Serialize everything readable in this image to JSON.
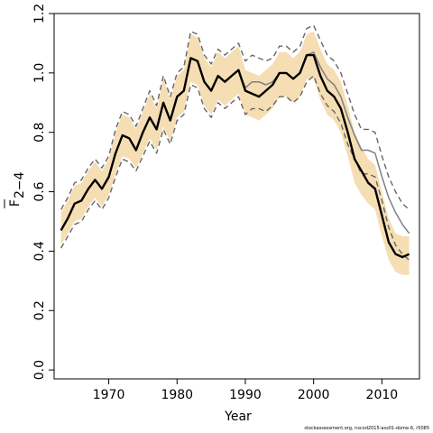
{
  "chart_data": {
    "type": "line",
    "xlabel": "Year",
    "ylabel_main": "F",
    "ylabel_sub": "2−4",
    "xlim": [
      1962,
      2015.5
    ],
    "ylim": [
      -0.03,
      1.2
    ],
    "x_ticks": [
      1970,
      1980,
      1990,
      2000,
      2010
    ],
    "y_ticks": [
      0.0,
      0.2,
      0.4,
      0.6,
      0.8,
      1.0,
      1.2
    ],
    "y_tick_labels": [
      "0.0",
      "0.2",
      "0.4",
      "0.6",
      "0.8",
      "1.0",
      "1.2"
    ],
    "colors": {
      "band": "#f5deb3",
      "main": "#000000",
      "alt": "#808080",
      "dash": "#666666"
    },
    "x": [
      1963,
      1964,
      1965,
      1966,
      1967,
      1968,
      1969,
      1970,
      1971,
      1972,
      1973,
      1974,
      1975,
      1976,
      1977,
      1978,
      1979,
      1980,
      1981,
      1982,
      1983,
      1984,
      1985,
      1986,
      1987,
      1988,
      1989,
      1990,
      1991,
      1992,
      1993,
      1994,
      1995,
      1996,
      1997,
      1998,
      1999,
      2000,
      2001,
      2002,
      2003,
      2004,
      2005,
      2006,
      2007,
      2008,
      2009,
      2010,
      2011,
      2012,
      2013,
      2014
    ],
    "series": [
      {
        "role": "main",
        "values": [
          0.47,
          0.51,
          0.56,
          0.57,
          0.61,
          0.64,
          0.61,
          0.65,
          0.73,
          0.79,
          0.78,
          0.74,
          0.8,
          0.85,
          0.81,
          0.9,
          0.84,
          0.92,
          0.94,
          1.05,
          1.04,
          0.97,
          0.94,
          0.99,
          0.97,
          0.99,
          1.01,
          0.94,
          0.93,
          0.92,
          0.94,
          0.96,
          1.0,
          1.0,
          0.98,
          1.0,
          1.06,
          1.06,
          0.99,
          0.94,
          0.92,
          0.88,
          0.8,
          0.71,
          0.67,
          0.63,
          0.61,
          0.52,
          0.43,
          0.39,
          0.38,
          0.39
        ]
      },
      {
        "role": "alt",
        "values": [
          0.47,
          0.51,
          0.56,
          0.57,
          0.61,
          0.64,
          0.61,
          0.65,
          0.73,
          0.79,
          0.78,
          0.74,
          0.8,
          0.85,
          0.81,
          0.9,
          0.84,
          0.92,
          0.94,
          1.05,
          1.04,
          0.97,
          0.94,
          0.99,
          0.97,
          0.99,
          1.01,
          0.95,
          0.97,
          0.97,
          0.96,
          0.97,
          1.0,
          1.0,
          0.98,
          1.0,
          1.06,
          1.07,
          1.02,
          0.98,
          0.96,
          0.92,
          0.85,
          0.79,
          0.74,
          0.74,
          0.73,
          0.65,
          0.58,
          0.53,
          0.49,
          0.46
        ]
      },
      {
        "role": "upper_dashed",
        "values": [
          0.54,
          0.58,
          0.63,
          0.64,
          0.68,
          0.71,
          0.68,
          0.72,
          0.81,
          0.87,
          0.86,
          0.82,
          0.88,
          0.94,
          0.89,
          0.99,
          0.92,
          1.0,
          1.02,
          1.14,
          1.13,
          1.06,
          1.03,
          1.08,
          1.06,
          1.08,
          1.1,
          1.04,
          1.06,
          1.05,
          1.04,
          1.05,
          1.09,
          1.09,
          1.07,
          1.09,
          1.15,
          1.16,
          1.11,
          1.06,
          1.04,
          1.0,
          0.93,
          0.86,
          0.81,
          0.81,
          0.8,
          0.72,
          0.65,
          0.6,
          0.56,
          0.54
        ]
      },
      {
        "role": "lower_dashed",
        "values": [
          0.41,
          0.45,
          0.49,
          0.5,
          0.54,
          0.57,
          0.54,
          0.58,
          0.65,
          0.71,
          0.7,
          0.67,
          0.72,
          0.77,
          0.73,
          0.81,
          0.76,
          0.84,
          0.86,
          0.96,
          0.95,
          0.88,
          0.85,
          0.9,
          0.88,
          0.9,
          0.92,
          0.86,
          0.88,
          0.88,
          0.87,
          0.89,
          0.92,
          0.92,
          0.9,
          0.92,
          0.97,
          0.99,
          0.93,
          0.89,
          0.87,
          0.83,
          0.76,
          0.71,
          0.66,
          0.66,
          0.65,
          0.57,
          0.48,
          0.42,
          0.39,
          0.37
        ]
      }
    ],
    "band": {
      "upper": [
        0.53,
        0.57,
        0.62,
        0.63,
        0.67,
        0.7,
        0.67,
        0.71,
        0.8,
        0.86,
        0.85,
        0.81,
        0.87,
        0.93,
        0.88,
        0.98,
        0.91,
        0.99,
        1.01,
        1.13,
        1.12,
        1.05,
        1.02,
        1.07,
        1.05,
        1.07,
        1.09,
        1.01,
        1.0,
        0.99,
        1.01,
        1.03,
        1.07,
        1.07,
        1.05,
        1.07,
        1.13,
        1.14,
        1.08,
        1.03,
        1.01,
        0.97,
        0.89,
        0.8,
        0.75,
        0.71,
        0.69,
        0.6,
        0.51,
        0.46,
        0.45,
        0.45
      ],
      "lower": [
        0.42,
        0.46,
        0.5,
        0.51,
        0.55,
        0.58,
        0.55,
        0.59,
        0.66,
        0.72,
        0.71,
        0.68,
        0.73,
        0.78,
        0.74,
        0.82,
        0.77,
        0.85,
        0.87,
        0.97,
        0.96,
        0.89,
        0.86,
        0.91,
        0.89,
        0.91,
        0.93,
        0.86,
        0.85,
        0.84,
        0.86,
        0.88,
        0.92,
        0.92,
        0.9,
        0.92,
        0.98,
        0.98,
        0.91,
        0.86,
        0.84,
        0.8,
        0.72,
        0.63,
        0.59,
        0.56,
        0.54,
        0.45,
        0.37,
        0.33,
        0.32,
        0.32
      ]
    }
  },
  "footnote": "stockassessment.org, nscod2015-ass01-dome-6, r5085"
}
